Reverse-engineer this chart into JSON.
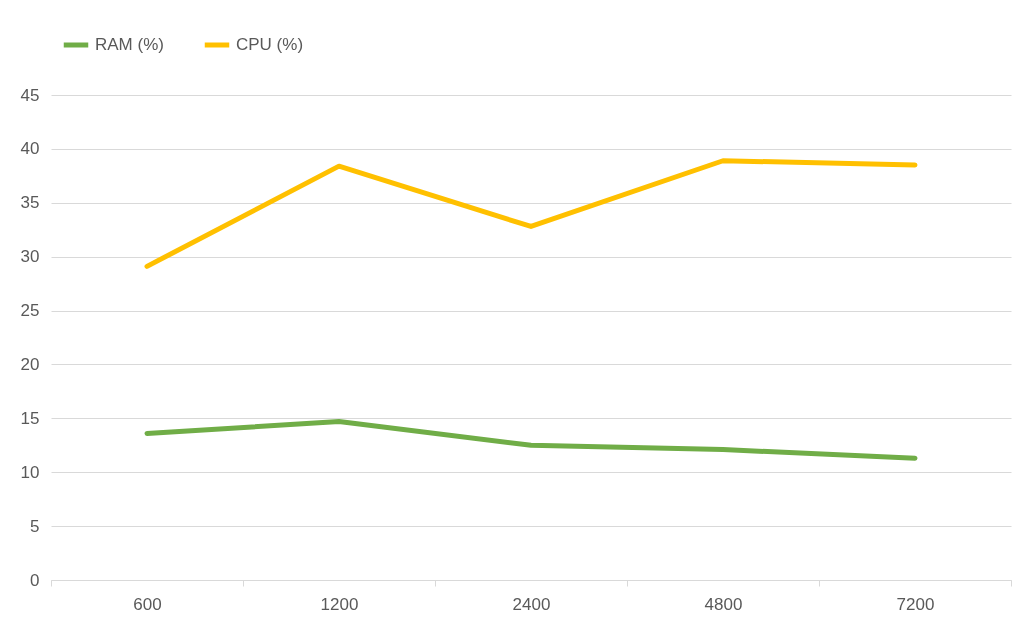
{
  "chart_data": {
    "type": "line",
    "categories": [
      "600",
      "1200",
      "2400",
      "4800",
      "7200"
    ],
    "series": [
      {
        "name": "RAM (%)",
        "color": "#70ad47",
        "values": [
          13.6,
          14.7,
          12.5,
          12.1,
          11.3
        ]
      },
      {
        "name": "CPU (%)",
        "color": "#ffc000",
        "values": [
          29.1,
          38.4,
          32.8,
          38.9,
          38.5
        ]
      }
    ],
    "ylim": [
      0,
      45
    ],
    "yticks": [
      0,
      5,
      10,
      15,
      20,
      25,
      30,
      35,
      40,
      45
    ],
    "grid": "y",
    "legend": "top",
    "marker": "none",
    "line_style": "solid"
  }
}
